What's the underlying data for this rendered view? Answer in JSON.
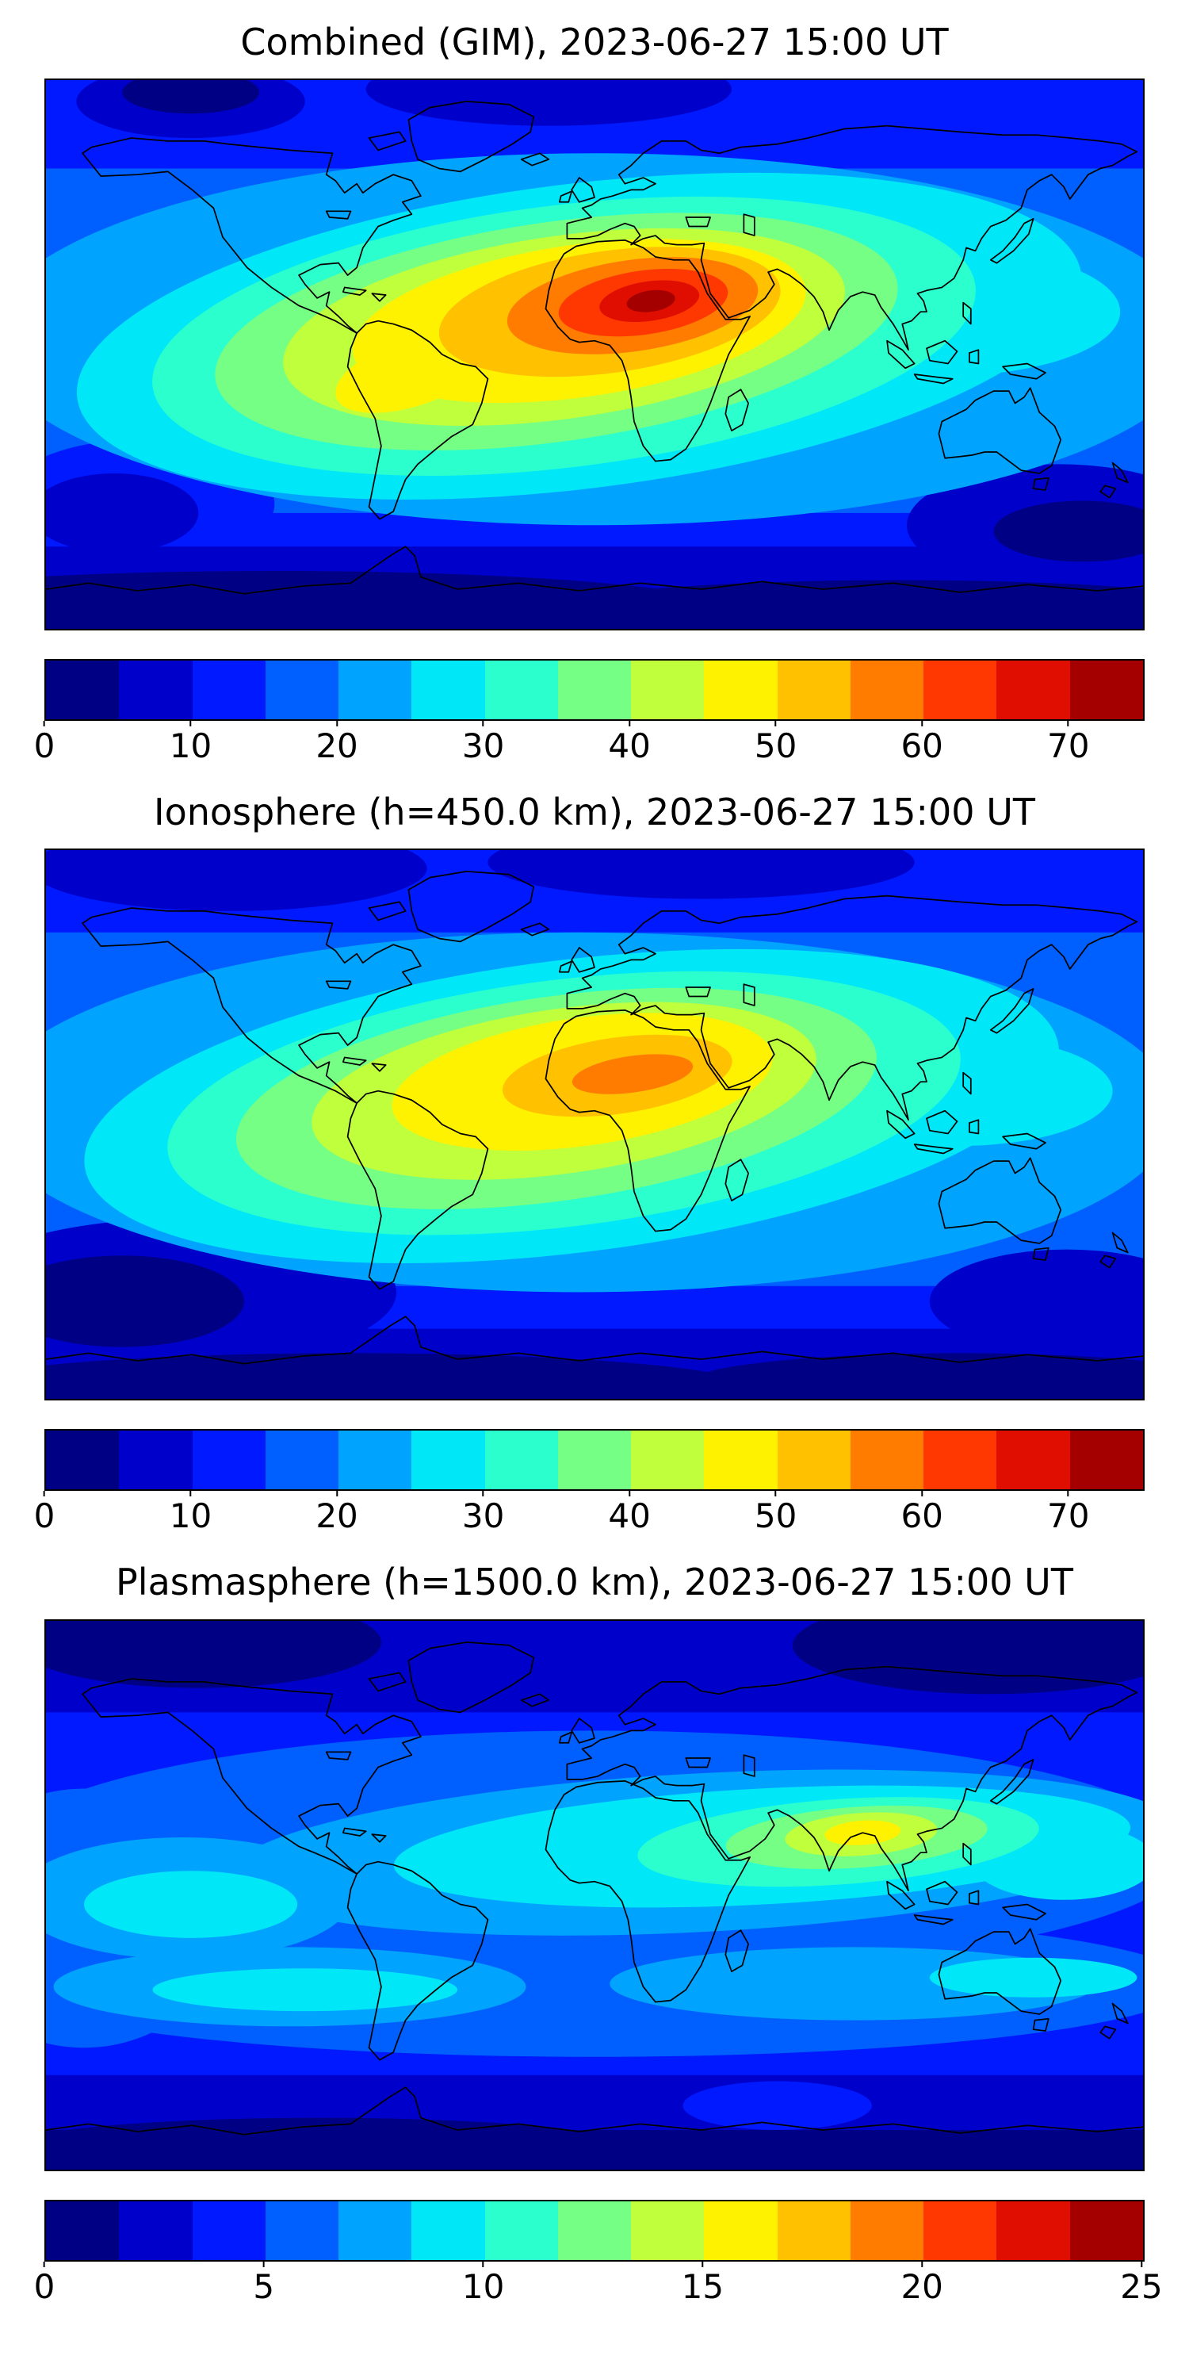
{
  "figure": {
    "background_color": "#ffffff",
    "colormap": {
      "name": "jet",
      "colors": [
        "#000085",
        "#0000cb",
        "#0019ff",
        "#0060ff",
        "#00a4ff",
        "#00e8f8",
        "#2cffce",
        "#76ff85",
        "#c0ff3b",
        "#fff200",
        "#ffc100",
        "#ff7c00",
        "#ff3700",
        "#e00e00",
        "#a50000"
      ]
    },
    "panels": [
      {
        "id": "combined",
        "title": "Combined (GIM), 2023-06-27 15:00 UT",
        "colorbar": {
          "min": 0,
          "max": 75,
          "ticks": [
            0,
            10,
            20,
            30,
            40,
            50,
            60,
            70
          ]
        }
      },
      {
        "id": "ionosphere",
        "title": "Ionosphere  (h=450.0 km), 2023-06-27 15:00 UT",
        "colorbar": {
          "min": 0,
          "max": 75,
          "ticks": [
            0,
            10,
            20,
            30,
            40,
            50,
            60,
            70
          ]
        }
      },
      {
        "id": "plasmasphere",
        "title": "Plasmasphere (h=1500.0 km), 2023-06-27 15:00 UT",
        "colorbar": {
          "min": 0,
          "max": 25,
          "ticks": [
            0,
            5,
            10,
            15,
            20,
            25
          ]
        }
      }
    ]
  },
  "chart_data": [
    {
      "type": "heatmap",
      "subtype": "filled_contour_world_map",
      "title": "Combined (GIM), 2023-06-27 15:00 UT",
      "projection": "equirectangular world map, lon -180..180, lat -90..90",
      "colormap": "jet, 15 discrete levels",
      "value_range": [
        0,
        75
      ],
      "contour_interval": 5,
      "colorbar_ticks": [
        0,
        10,
        20,
        30,
        40,
        50,
        60,
        70
      ],
      "peak": {
        "approx_value": 72,
        "approx_lon_deg": 8,
        "approx_lat_deg": 15,
        "region": "north-central Africa (Sahara)"
      },
      "pattern": "Broad dayside enhancement elongated WSW-ENE from northern South America across the Atlantic and Africa toward Arabia/India; dark-red core (>65) over the Sahara ringed by red, orange, yellow, green and cyan levels; values fall below 10 toward both poles and over the night-side Pacific and Australia, with darkest blues near Antarctica."
    },
    {
      "type": "heatmap",
      "subtype": "filled_contour_world_map",
      "title": "Ionosphere  (h=450.0 km), 2023-06-27 15:00 UT",
      "projection": "equirectangular world map, lon -180..180, lat -90..90",
      "colormap": "jet, 15 discrete levels",
      "value_range": [
        0,
        75
      ],
      "contour_interval": 5,
      "colorbar_ticks": [
        0,
        10,
        20,
        30,
        40,
        50,
        60,
        70
      ],
      "peak": {
        "approx_value": 57,
        "approx_lon_deg": 10,
        "approx_lat_deg": 13,
        "region": "west-central Africa"
      },
      "pattern": "Same enhancement as the combined map but weaker; orange core (~55-60) over Africa surrounded by yellow and green rings; cyan tongue extends over India/SE Asia; dark navy (<10) over the south Pacific, south of Australia and both polar caps."
    },
    {
      "type": "heatmap",
      "subtype": "filled_contour_world_map",
      "title": "Plasmasphere (h=1500.0 km), 2023-06-27 15:00 UT",
      "projection": "equirectangular world map, lon -180..180, lat -90..90",
      "colormap": "jet, 15 discrete levels",
      "value_range": [
        0,
        25
      ],
      "colorbar_ticks": [
        0,
        5,
        10,
        15,
        20,
        25
      ],
      "peak": {
        "approx_value": 17,
        "approx_lon_deg": 85,
        "approx_lat_deg": 18,
        "region": "India / Bay of Bengal"
      },
      "pattern": "Low-amplitude equatorial band (~8-13) circling the globe with cyan segments in both hemispheres and a yellow-green maximum over southern Asia; values drop to 2-5 at high latitudes with darkest blues along the top and bottom of the map."
    }
  ]
}
